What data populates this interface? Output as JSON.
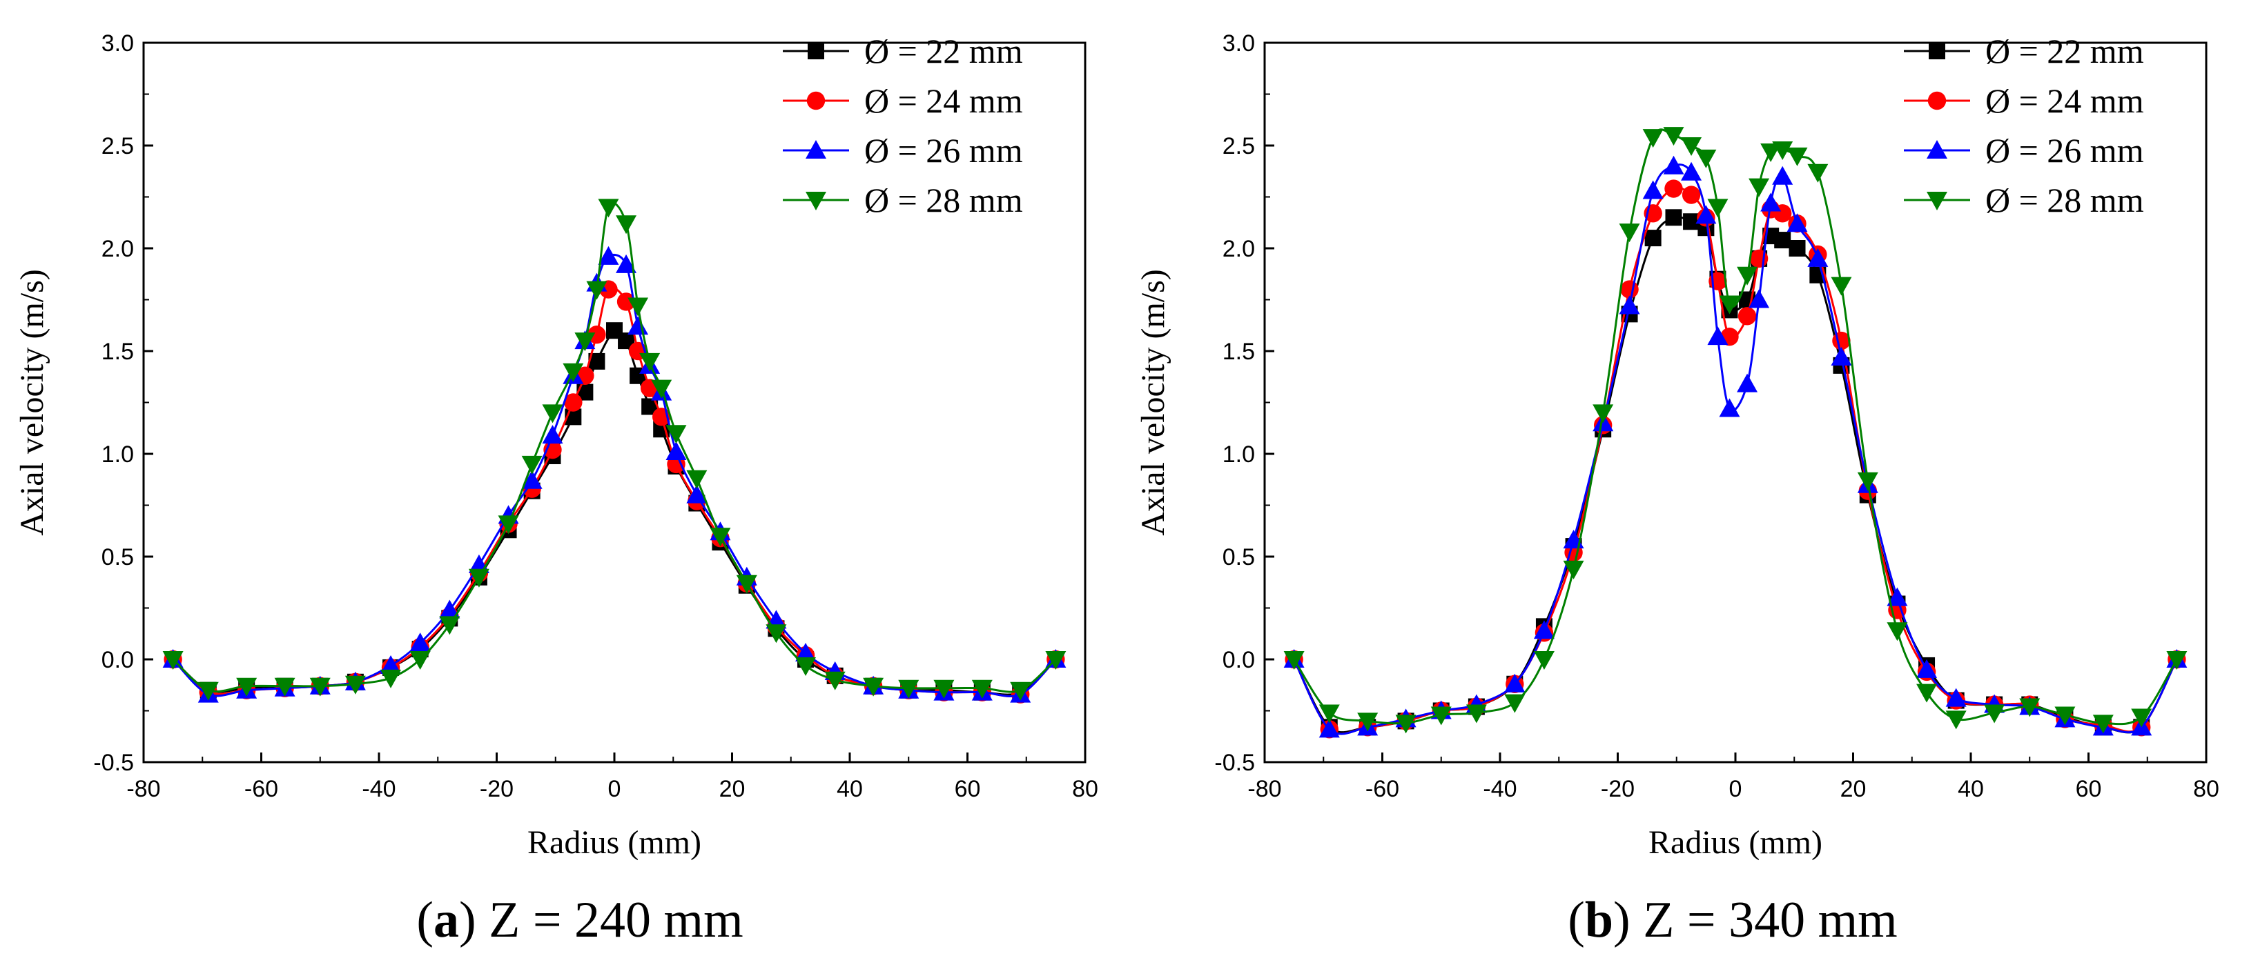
{
  "chart_data": [
    {
      "type": "line",
      "id": "a",
      "caption_letter": "a",
      "caption_text": " Z = 240 mm",
      "xlabel": "Radius (mm)",
      "ylabel": "Axial velocity (m/s)",
      "xlim": [
        -80,
        80
      ],
      "ylim": [
        -0.5,
        3.0
      ],
      "xticks": [
        -80,
        -60,
        -40,
        -20,
        0,
        20,
        40,
        60,
        80
      ],
      "yticks": [
        -0.5,
        0.0,
        0.5,
        1.0,
        1.5,
        2.0,
        2.5,
        3.0
      ],
      "xtick_labels": [
        "-80",
        "-60",
        "-40",
        "-20",
        "0",
        "20",
        "40",
        "60",
        "80"
      ],
      "ytick_labels": [
        "-0.5",
        "0.0",
        "0.5",
        "1.0",
        "1.5",
        "2.0",
        "2.5",
        "3.0"
      ],
      "legend_position": "top-right",
      "series": [
        {
          "name": "Ø = 22 mm",
          "color": "#000000",
          "marker": "square",
          "x": [
            -75,
            -69,
            -62.5,
            -56,
            -50,
            -44,
            -38,
            -33,
            -28,
            -23,
            -18,
            -14,
            -10.5,
            -7,
            -5,
            -3,
            0,
            2,
            4,
            6,
            8,
            10.5,
            14,
            18,
            22.5,
            27.5,
            32.5,
            37.5,
            44,
            50,
            56,
            62.5,
            69,
            75
          ],
          "y": [
            0,
            -0.15,
            -0.14,
            -0.13,
            -0.13,
            -0.11,
            -0.04,
            0.05,
            0.2,
            0.4,
            0.63,
            0.82,
            0.99,
            1.18,
            1.3,
            1.45,
            1.6,
            1.55,
            1.38,
            1.23,
            1.12,
            0.94,
            0.76,
            0.57,
            0.36,
            0.15,
            0.0,
            -0.08,
            -0.13,
            -0.15,
            -0.15,
            -0.16,
            -0.16,
            0
          ]
        },
        {
          "name": "Ø = 24 mm",
          "color": "#ff0000",
          "marker": "circle",
          "x": [
            -75,
            -69,
            -62.5,
            -56,
            -50,
            -44,
            -38,
            -33,
            -28,
            -23,
            -18,
            -14,
            -10.5,
            -7,
            -5,
            -3,
            -1,
            2,
            4,
            6,
            8,
            10.5,
            14,
            18,
            22.5,
            27.5,
            32.5,
            37.5,
            44,
            50,
            56,
            62.5,
            69,
            75
          ],
          "y": [
            0,
            -0.16,
            -0.15,
            -0.14,
            -0.13,
            -0.11,
            -0.04,
            0.06,
            0.21,
            0.42,
            0.66,
            0.83,
            1.02,
            1.25,
            1.38,
            1.58,
            1.8,
            1.74,
            1.5,
            1.32,
            1.18,
            0.95,
            0.77,
            0.59,
            0.37,
            0.16,
            0.02,
            -0.08,
            -0.13,
            -0.15,
            -0.16,
            -0.16,
            -0.17,
            0
          ]
        },
        {
          "name": "Ø = 26 mm",
          "color": "#0000ff",
          "marker": "triangle-up",
          "x": [
            -75,
            -69,
            -62.5,
            -56,
            -50,
            -44,
            -38,
            -33,
            -28,
            -23,
            -18,
            -14,
            -10.5,
            -7,
            -5,
            -3,
            -1,
            2,
            4,
            6,
            8,
            10.5,
            14,
            18,
            22.5,
            27.5,
            32.5,
            37.5,
            44,
            50,
            56,
            62.5,
            69,
            75
          ],
          "y": [
            0,
            -0.17,
            -0.15,
            -0.14,
            -0.13,
            -0.11,
            -0.03,
            0.08,
            0.24,
            0.46,
            0.7,
            0.87,
            1.09,
            1.38,
            1.55,
            1.83,
            1.96,
            1.92,
            1.62,
            1.43,
            1.3,
            1.01,
            0.8,
            0.62,
            0.4,
            0.19,
            0.03,
            -0.06,
            -0.13,
            -0.15,
            -0.16,
            -0.16,
            -0.17,
            0
          ]
        },
        {
          "name": "Ø = 28 mm",
          "color": "#008000",
          "marker": "triangle-down",
          "x": [
            -75,
            -69,
            -62.5,
            -56,
            -50,
            -44,
            -38,
            -33,
            -28,
            -23,
            -18,
            -14,
            -10.5,
            -7,
            -5,
            -3,
            -1,
            2,
            4,
            6,
            8,
            10.5,
            14,
            18,
            22.5,
            27.5,
            32.5,
            37.5,
            44,
            50,
            56,
            62.5,
            69,
            75
          ],
          "y": [
            0,
            -0.15,
            -0.13,
            -0.13,
            -0.13,
            -0.12,
            -0.09,
            0.0,
            0.17,
            0.4,
            0.66,
            0.95,
            1.2,
            1.4,
            1.55,
            1.8,
            2.2,
            2.12,
            1.72,
            1.45,
            1.32,
            1.1,
            0.88,
            0.6,
            0.37,
            0.13,
            -0.03,
            -0.1,
            -0.13,
            -0.14,
            -0.14,
            -0.14,
            -0.15,
            0
          ]
        }
      ]
    },
    {
      "type": "line",
      "id": "b",
      "caption_letter": "b",
      "caption_text": " Z = 340 mm",
      "xlabel": "Radius (mm)",
      "ylabel": "Axial velocity (m/s)",
      "xlim": [
        -80,
        80
      ],
      "ylim": [
        -0.5,
        3.0
      ],
      "xticks": [
        -80,
        -60,
        -40,
        -20,
        0,
        20,
        40,
        60,
        80
      ],
      "yticks": [
        -0.5,
        0.0,
        0.5,
        1.0,
        1.5,
        2.0,
        2.5,
        3.0
      ],
      "xtick_labels": [
        "-80",
        "-60",
        "-40",
        "-20",
        "0",
        "20",
        "40",
        "60",
        "80"
      ],
      "ytick_labels": [
        "-0.5",
        "0.0",
        "0.5",
        "1.0",
        "1.5",
        "2.0",
        "2.5",
        "3.0"
      ],
      "legend_position": "top-right",
      "series": [
        {
          "name": "Ø = 22 mm",
          "color": "#000000",
          "marker": "square",
          "x": [
            -75,
            -69,
            -62.5,
            -56,
            -50,
            -44,
            -37.5,
            -32.5,
            -27.5,
            -22.5,
            -18,
            -14,
            -10.5,
            -7.5,
            -5,
            -3,
            -1,
            2,
            4,
            6,
            8,
            10.5,
            14,
            18,
            22.5,
            27.5,
            32.5,
            37.5,
            44,
            50,
            56,
            62.5,
            69,
            75
          ],
          "y": [
            0,
            -0.33,
            -0.33,
            -0.3,
            -0.25,
            -0.23,
            -0.12,
            0.16,
            0.55,
            1.12,
            1.68,
            2.05,
            2.15,
            2.13,
            2.1,
            1.85,
            1.7,
            1.75,
            1.95,
            2.06,
            2.04,
            2.0,
            1.87,
            1.43,
            0.8,
            0.27,
            -0.03,
            -0.2,
            -0.22,
            -0.22,
            -0.28,
            -0.33,
            -0.33,
            0
          ]
        },
        {
          "name": "Ø = 24 mm",
          "color": "#ff0000",
          "marker": "circle",
          "x": [
            -75,
            -69,
            -62.5,
            -56,
            -50,
            -44,
            -37.5,
            -32.5,
            -27.5,
            -22.5,
            -18,
            -14,
            -10.5,
            -7.5,
            -5,
            -3,
            -1,
            2,
            4,
            6,
            8,
            10.5,
            14,
            18,
            22.5,
            27.5,
            32.5,
            37.5,
            44,
            50,
            56,
            62.5,
            69,
            75
          ],
          "y": [
            0,
            -0.34,
            -0.33,
            -0.3,
            -0.25,
            -0.23,
            -0.12,
            0.13,
            0.52,
            1.14,
            1.8,
            2.17,
            2.29,
            2.26,
            2.15,
            1.84,
            1.57,
            1.67,
            1.95,
            2.19,
            2.17,
            2.12,
            1.97,
            1.55,
            0.82,
            0.24,
            -0.06,
            -0.2,
            -0.22,
            -0.22,
            -0.29,
            -0.32,
            -0.33,
            0
          ]
        },
        {
          "name": "Ø = 26 mm",
          "color": "#0000ff",
          "marker": "triangle-up",
          "x": [
            -75,
            -69,
            -62.5,
            -56,
            -50,
            -44,
            -37.5,
            -32.5,
            -27.5,
            -22.5,
            -18,
            -14,
            -10.5,
            -7.5,
            -5,
            -3,
            -1,
            2,
            4,
            6,
            8,
            10.5,
            14,
            18,
            22.5,
            27.5,
            32.5,
            37.5,
            44,
            50,
            56,
            62.5,
            69,
            75
          ],
          "y": [
            0,
            -0.34,
            -0.33,
            -0.29,
            -0.25,
            -0.22,
            -0.12,
            0.14,
            0.58,
            1.15,
            1.72,
            2.28,
            2.4,
            2.37,
            2.16,
            1.57,
            1.22,
            1.34,
            1.75,
            2.22,
            2.35,
            2.12,
            1.95,
            1.47,
            0.85,
            0.3,
            -0.05,
            -0.19,
            -0.22,
            -0.23,
            -0.29,
            -0.33,
            -0.33,
            0
          ]
        },
        {
          "name": "Ø = 28 mm",
          "color": "#008000",
          "marker": "triangle-down",
          "x": [
            -75,
            -69,
            -62.5,
            -56,
            -50,
            -44,
            -37.5,
            -32.5,
            -27.5,
            -22.5,
            -18,
            -14,
            -10.5,
            -7.5,
            -5,
            -3,
            -1,
            2,
            4,
            6,
            8,
            10.5,
            14,
            18,
            22.5,
            27.5,
            32.5,
            37.5,
            44,
            50,
            56,
            62.5,
            69,
            75
          ],
          "y": [
            0,
            -0.26,
            -0.3,
            -0.31,
            -0.27,
            -0.26,
            -0.21,
            0.0,
            0.44,
            1.2,
            2.08,
            2.54,
            2.55,
            2.5,
            2.44,
            2.2,
            1.73,
            1.87,
            2.3,
            2.47,
            2.48,
            2.45,
            2.37,
            1.82,
            0.87,
            0.14,
            -0.16,
            -0.29,
            -0.26,
            -0.23,
            -0.27,
            -0.31,
            -0.28,
            0
          ]
        }
      ]
    }
  ]
}
